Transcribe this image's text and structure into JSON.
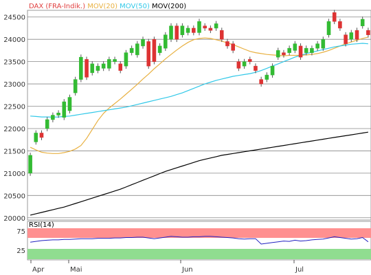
{
  "chart_data": [
    {
      "type": "candlestick",
      "instrument": "DAX (FRA-Indik.)",
      "legend": [
        {
          "label": "DAX (FRA-Indik.)",
          "color": "#e04040"
        },
        {
          "label": "MOV(20)",
          "color": "#e8b040"
        },
        {
          "label": "MOV(50)",
          "color": "#30c8e8"
        },
        {
          "label": "MOV(200)",
          "color": "#000000"
        }
      ],
      "y_ticks": [
        24500,
        24000,
        23500,
        23000,
        22500,
        22000,
        21500,
        21000,
        20500,
        20000
      ],
      "ylim": [
        19950,
        24650
      ],
      "x_labels": [
        "Apr",
        "Mai",
        "Jun",
        "Jul"
      ],
      "grid": true,
      "candles": [
        [
          21000,
          21400
        ],
        [
          21700,
          21900
        ],
        [
          21900,
          21800
        ],
        [
          22000,
          22200
        ],
        [
          22200,
          22300
        ],
        [
          22300,
          22350
        ],
        [
          22250,
          22600
        ],
        [
          22400,
          22700
        ],
        [
          22800,
          23100
        ],
        [
          23100,
          23600
        ],
        [
          23550,
          23150
        ],
        [
          23250,
          23450
        ],
        [
          23300,
          23400
        ],
        [
          23350,
          23450
        ],
        [
          23350,
          23550
        ],
        [
          23500,
          23550
        ],
        [
          23450,
          23300
        ],
        [
          23400,
          23700
        ],
        [
          23700,
          23800
        ],
        [
          23650,
          23900
        ],
        [
          23850,
          24000
        ],
        [
          23950,
          23400
        ],
        [
          24000,
          23500
        ],
        [
          23700,
          23850
        ],
        [
          23800,
          24100
        ],
        [
          24000,
          24300
        ],
        [
          24300,
          24000
        ],
        [
          24100,
          24300
        ],
        [
          24150,
          24250
        ],
        [
          24250,
          24150
        ],
        [
          24150,
          24400
        ],
        [
          24300,
          24250
        ],
        [
          24250,
          24200
        ],
        [
          24250,
          24350
        ],
        [
          24200,
          24000
        ],
        [
          23950,
          23850
        ],
        [
          23900,
          23750
        ],
        [
          23500,
          23350
        ],
        [
          23400,
          23500
        ],
        [
          23550,
          23500
        ],
        [
          23400,
          23300
        ],
        [
          23100,
          23000
        ],
        [
          23100,
          23200
        ],
        [
          23200,
          23400
        ],
        [
          23600,
          23750
        ],
        [
          23700,
          23650
        ],
        [
          23700,
          23800
        ],
        [
          23750,
          23900
        ],
        [
          23850,
          23600
        ],
        [
          23700,
          23800
        ],
        [
          23700,
          23800
        ],
        [
          23800,
          23900
        ],
        [
          23800,
          24000
        ],
        [
          24100,
          24400
        ],
        [
          24600,
          24400
        ],
        [
          24400,
          24250
        ],
        [
          24100,
          23900
        ],
        [
          24000,
          24150
        ],
        [
          24200,
          24000
        ],
        [
          24300,
          24450
        ],
        [
          24200,
          24100
        ]
      ],
      "series": [
        {
          "name": "MOV(20)",
          "color": "#e8b040",
          "values": [
            21580,
            21520,
            21470,
            21450,
            21440,
            21440,
            21460,
            21490,
            21540,
            21620,
            21780,
            21980,
            22180,
            22340,
            22460,
            22560,
            22660,
            22770,
            22880,
            22990,
            23110,
            23220,
            23340,
            23450,
            23560,
            23660,
            23760,
            23850,
            23930,
            23990,
            24020,
            24030,
            24020,
            23990,
            23960,
            23920,
            23880,
            23830,
            23780,
            23730,
            23700,
            23680,
            23660,
            23650,
            23640,
            23630,
            23640,
            23640,
            23640,
            23650,
            23660,
            23680,
            23710,
            23750,
            23800,
            23850,
            23900,
            23940,
            23980,
            24020,
            24050
          ]
        },
        {
          "name": "MOV(50)",
          "color": "#30c8e8",
          "values": [
            22280,
            22270,
            22260,
            22260,
            22255,
            22260,
            22270,
            22280,
            22300,
            22320,
            22340,
            22360,
            22380,
            22400,
            22420,
            22440,
            22460,
            22480,
            22510,
            22540,
            22570,
            22600,
            22630,
            22660,
            22690,
            22720,
            22760,
            22800,
            22850,
            22900,
            22950,
            23000,
            23040,
            23080,
            23110,
            23140,
            23170,
            23190,
            23210,
            23230,
            23260,
            23300,
            23350,
            23400,
            23450,
            23500,
            23550,
            23600,
            23640,
            23680,
            23710,
            23740,
            23770,
            23800,
            23830,
            23850,
            23870,
            23890,
            23900,
            23910,
            23900
          ]
        },
        {
          "name": "MOV(200)",
          "color": "#000000",
          "values": [
            20060,
            20090,
            20120,
            20150,
            20180,
            20210,
            20240,
            20280,
            20320,
            20360,
            20400,
            20440,
            20480,
            20520,
            20560,
            20600,
            20640,
            20690,
            20740,
            20790,
            20840,
            20890,
            20940,
            20990,
            21040,
            21080,
            21120,
            21160,
            21200,
            21240,
            21280,
            21310,
            21340,
            21370,
            21400,
            21420,
            21440,
            21460,
            21480,
            21500,
            21520,
            21540,
            21560,
            21580,
            21600,
            21620,
            21640,
            21660,
            21680,
            21700,
            21720,
            21740,
            21760,
            21780,
            21800,
            21820,
            21840,
            21860,
            21880,
            21900,
            21920
          ]
        }
      ]
    },
    {
      "type": "line",
      "title": "RSI(14)",
      "y_ticks": [
        75,
        25
      ],
      "ylim": [
        0,
        100
      ],
      "overbought": 70,
      "oversold": 30,
      "zone_colors": {
        "high": "#ff9090",
        "low": "#90dd90"
      },
      "series": [
        {
          "name": "RSI(14)",
          "color": "#2020c0",
          "values": [
            46,
            48,
            50,
            51,
            52,
            52,
            53,
            53,
            54,
            55,
            55,
            55,
            56,
            56,
            56,
            57,
            57,
            58,
            58,
            59,
            59,
            57,
            55,
            57,
            59,
            61,
            60,
            59,
            59,
            60,
            60,
            61,
            61,
            60,
            59,
            58,
            57,
            55,
            54,
            55,
            55,
            41,
            43,
            45,
            47,
            49,
            48,
            51,
            49,
            50,
            52,
            53,
            54,
            57,
            60,
            58,
            56,
            54,
            55,
            58,
            47
          ]
        }
      ]
    }
  ]
}
